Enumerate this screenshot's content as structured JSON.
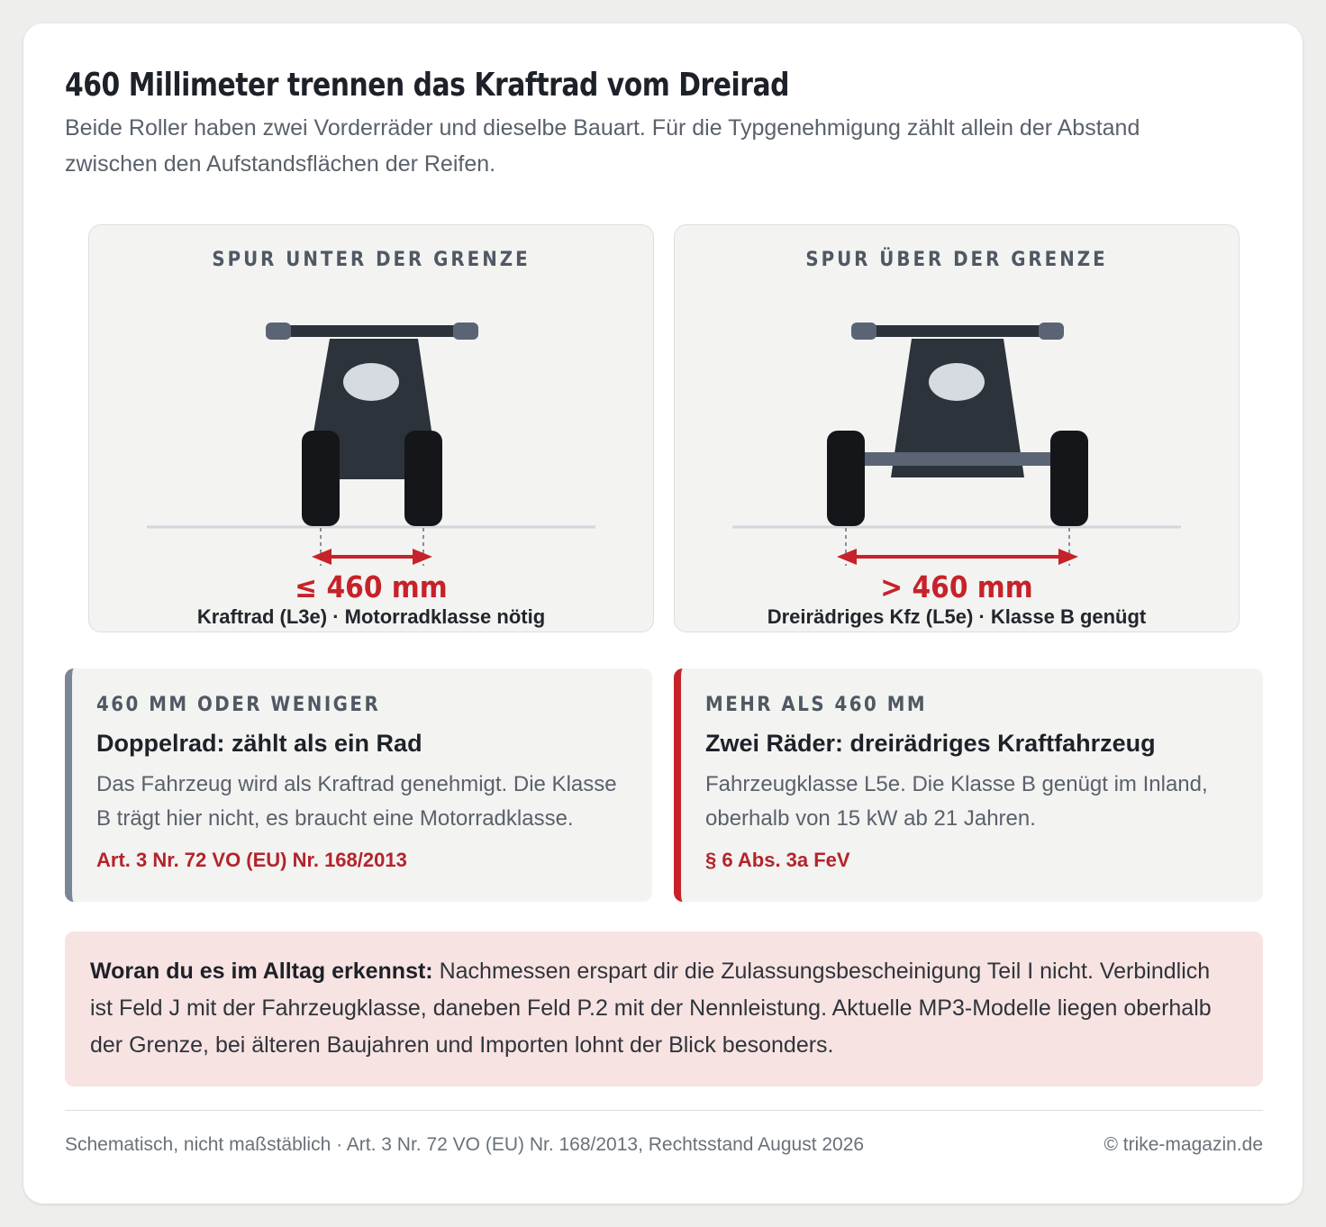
{
  "title": "460 Millimeter trennen das Kraftrad vom Dreirad",
  "subtitle": "Beide Roller haben zwei Vorderräder und dieselbe Bauart. Für die Typgenehmigung zählt allein der Abstand zwischen den Aufstandsflächen der Reifen.",
  "panels": [
    {
      "heading": "SPUR UNTER DER GRENZE",
      "measure": "≤ 460 mm",
      "label": "Kraftrad (L3e) · Motorradklasse nötig"
    },
    {
      "heading": "SPUR ÜBER DER GRENZE",
      "measure": "> 460 mm",
      "label": "Dreirädriges Kfz (L5e) · Klasse B genügt"
    }
  ],
  "cards": [
    {
      "kicker": "460 MM ODER WENIGER",
      "head": "Doppelrad: zählt als ein Rad",
      "body": "Das Fahrzeug wird als Kraftrad genehmigt. Die Klasse B trägt hier nicht, es braucht eine Motorradklasse.",
      "ref": "Art. 3 Nr. 72 VO (EU) Nr. 168/2013"
    },
    {
      "kicker": "MEHR ALS 460 MM",
      "head": "Zwei Räder: dreirädriges Kraftfahrzeug",
      "body": "Fahrzeugklasse L5e. Die Klasse B genügt im Inland, oberhalb von 15 kW ab 21 Jahren.",
      "ref": "§ 6 Abs. 3a FeV"
    }
  ],
  "hint": {
    "lead": "Woran du es im Alltag erkennst:",
    "text": " Nachmessen erspart dir die Zulassungsbescheinigung Teil I nicht. Verbindlich ist Feld J mit der Fahrzeugklasse, daneben Feld P.2 mit der Nennleistung. Aktuelle MP3-Modelle liegen oberhalb der Grenze, bei älteren Baujahren und Importen lohnt der Blick besonders."
  },
  "footer": {
    "note": "Schematisch, nicht maßstäblich · Art. 3 Nr. 72 VO (EU) Nr. 168/2013, Rechtsstand August 2026",
    "copyright": "© trike-magazin.de"
  },
  "colors": {
    "accent_red": "#c6222a",
    "body_dark": "#2d333b",
    "tire": "#141619",
    "handlebar_grip": "#5b6474",
    "headlight": "#d6dae1",
    "axle": "#5b6474"
  }
}
